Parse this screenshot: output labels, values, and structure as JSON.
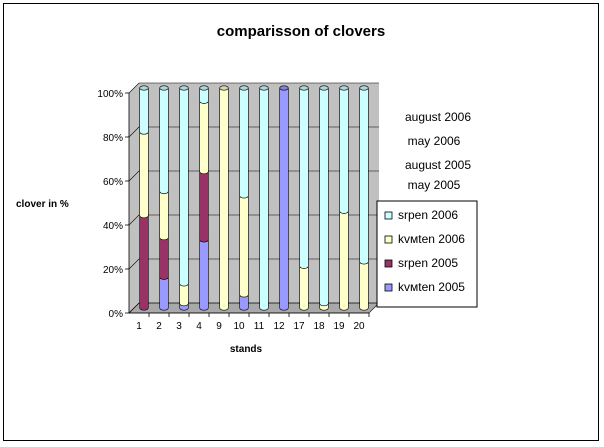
{
  "chart_data": {
    "type": "bar",
    "stacked": "percent",
    "title": "comparisson of clovers",
    "xlabel": "stands",
    "ylabel": "clover in %",
    "categories": [
      "1",
      "2",
      "3",
      "4",
      "9",
      "10",
      "11",
      "12",
      "17",
      "18",
      "19",
      "20"
    ],
    "yticks": [
      "0%",
      "20%",
      "40%",
      "60%",
      "80%",
      "100%"
    ],
    "ylim": [
      0,
      100
    ],
    "grid": true,
    "legend_position": "right",
    "series": [
      {
        "name": "kvмten  2005",
        "color": "#9999ff",
        "values": [
          0,
          14,
          2,
          31,
          0,
          6,
          0,
          100,
          0,
          0,
          0,
          0
        ]
      },
      {
        "name": "srpen 2005",
        "color": "#993366",
        "values": [
          42,
          18,
          0,
          31,
          0,
          0,
          0,
          0,
          0,
          0,
          0,
          0
        ]
      },
      {
        "name": "kvмten 2006",
        "color": "#ffffcc",
        "values": [
          38,
          21,
          9,
          32,
          100,
          45,
          0,
          0,
          19,
          2,
          44,
          21
        ]
      },
      {
        "name": "srpen 2006",
        "color": "#ccffff",
        "values": [
          20,
          47,
          89,
          6,
          0,
          49,
          100,
          0,
          81,
          98,
          56,
          79
        ]
      }
    ],
    "annotations": [
      "august 2006",
      "may 2006",
      "august 2005",
      "may 2005"
    ]
  }
}
